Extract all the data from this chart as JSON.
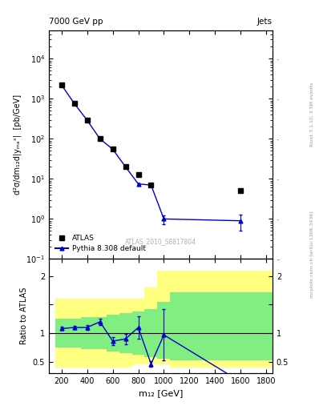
{
  "title_left": "7000 GeV pp",
  "title_right": "Jets",
  "watermark": "ATLAS_2010_S8817804",
  "right_label": "Rivet 3.1.10, 3.5M events",
  "right_label2": "mcplots.cern.ch [arXiv:1306.3436]",
  "ylabel_main": "d²σ/dm₁₂d|yₘₐˣ|  [pb/GeV]",
  "ylabel_ratio": "Ratio to ATLAS",
  "xlabel": "m₁₂ [GeV]",
  "atlas_x": [
    200,
    300,
    400,
    500,
    600,
    700,
    800,
    900,
    1600
  ],
  "atlas_y": [
    2200,
    760,
    290,
    100,
    55,
    20,
    13,
    7.0,
    5.0
  ],
  "pythia_x": [
    200,
    300,
    400,
    500,
    600,
    700,
    800,
    900,
    1000,
    1600
  ],
  "pythia_y": [
    2200,
    760,
    290,
    100,
    55,
    20,
    7.5,
    7.0,
    1.0,
    0.9
  ],
  "pythia_yerr_lo": [
    60,
    20,
    8,
    4,
    2,
    0.8,
    0.4,
    0.5,
    0.25,
    0.4
  ],
  "pythia_yerr_hi": [
    60,
    20,
    8,
    4,
    2,
    0.8,
    0.4,
    0.5,
    0.25,
    0.4
  ],
  "ratio_x": [
    200,
    300,
    400,
    500,
    600,
    700,
    800,
    900,
    1000,
    1600
  ],
  "ratio_y": [
    1.08,
    1.1,
    1.1,
    1.2,
    0.86,
    0.9,
    1.1,
    0.46,
    0.97,
    0.15
  ],
  "ratio_yerr_lo": [
    0.03,
    0.03,
    0.04,
    0.06,
    0.07,
    0.09,
    0.2,
    0.05,
    0.45,
    0.05
  ],
  "ratio_yerr_hi": [
    0.03,
    0.03,
    0.04,
    0.06,
    0.07,
    0.09,
    0.2,
    0.05,
    0.45,
    0.05
  ],
  "band_edges": [
    150,
    250,
    350,
    450,
    550,
    650,
    750,
    850,
    950,
    1050,
    1250,
    1900
  ],
  "yellow_lo": [
    0.4,
    0.4,
    0.4,
    0.4,
    0.4,
    0.4,
    0.45,
    0.45,
    0.45,
    0.4,
    0.4
  ],
  "yellow_hi": [
    1.6,
    1.6,
    1.6,
    1.6,
    1.6,
    1.6,
    1.6,
    1.8,
    2.1,
    2.1,
    2.1
  ],
  "green_lo": [
    0.75,
    0.75,
    0.72,
    0.72,
    0.68,
    0.65,
    0.62,
    0.58,
    0.55,
    0.52,
    0.52
  ],
  "green_hi": [
    1.25,
    1.25,
    1.28,
    1.28,
    1.32,
    1.35,
    1.38,
    1.42,
    1.55,
    1.72,
    1.72
  ],
  "main_ylim": [
    0.1,
    50000
  ],
  "ratio_ylim": [
    0.3,
    2.3
  ],
  "ratio_yticks": [
    0.5,
    1.0,
    1.5,
    2.0
  ],
  "ratio_yticklabels": [
    "0.5",
    "1",
    "",
    "2"
  ],
  "color_atlas": "#000000",
  "color_pythia": "#0000cc",
  "color_yellow": "#ffff80",
  "color_green": "#80ee80",
  "background": "#ffffff"
}
